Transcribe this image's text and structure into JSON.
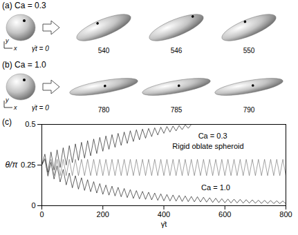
{
  "panels": [
    {
      "label": "(a) Ca = 0.3",
      "axis_labels": {
        "x": "x",
        "y": "y"
      },
      "initial_time": "γ̇t = 0",
      "times": [
        540,
        546,
        550
      ]
    },
    {
      "label": "(b) Ca = 1.0",
      "axis_labels": {
        "x": "x",
        "y": "y"
      },
      "initial_time": "γ̇t = 0",
      "times": [
        780,
        785,
        790
      ]
    }
  ],
  "chart_data": {
    "type": "line",
    "title": "(c)",
    "xlabel": "γ̇t",
    "ylabel": "θ/π",
    "xlim": [
      0,
      800
    ],
    "xticks": [
      0,
      200,
      400,
      600,
      800
    ],
    "ylim": [
      0,
      0.5
    ],
    "yticks": [
      0,
      0.25,
      0.5
    ],
    "x": [
      0,
      10,
      20,
      30,
      40,
      50,
      60,
      70,
      80,
      90,
      100,
      110,
      120,
      130,
      140,
      150,
      160,
      170,
      180,
      190,
      200,
      210,
      220,
      230,
      240,
      250,
      260,
      270,
      280,
      290,
      300,
      310,
      320,
      330,
      340,
      350,
      360,
      370,
      380,
      390,
      400,
      410,
      420,
      430,
      440,
      450,
      460,
      470,
      480,
      490,
      500,
      510,
      520,
      530,
      540,
      550,
      560,
      570,
      580,
      590,
      600,
      610,
      620,
      630,
      640,
      650,
      660,
      670,
      680,
      690,
      700,
      710,
      720,
      730,
      740,
      750,
      760,
      770,
      780,
      790,
      800
    ],
    "series": [
      {
        "color": "#000000",
        "values": [
          0.25,
          0.317,
          0.205,
          0.33,
          0.22,
          0.343,
          0.235,
          0.356,
          0.25,
          0.369,
          0.265,
          0.38,
          0.279,
          0.39,
          0.293,
          0.4,
          0.307,
          0.41,
          0.321,
          0.42,
          0.335,
          0.429,
          0.347,
          0.437,
          0.359,
          0.445,
          0.371,
          0.453,
          0.383,
          0.461,
          0.395,
          0.467,
          0.405,
          0.471,
          0.415,
          0.475,
          0.425,
          0.479,
          0.435,
          0.483,
          0.445,
          0.487,
          0.453,
          0.49,
          0.46,
          0.493,
          0.468,
          0.497,
          0.476,
          0.5,
          null,
          null,
          null,
          null,
          null,
          null,
          null,
          null,
          null,
          null,
          null,
          null,
          null,
          null,
          null,
          null,
          null,
          null,
          null,
          null,
          null,
          null,
          null,
          null,
          null,
          null,
          null,
          null,
          null,
          null,
          null
        ]
      },
      {
        "color": "#000000",
        "values": [
          0.25,
          0.289,
          0.182,
          0.267,
          0.164,
          0.245,
          0.146,
          0.223,
          0.128,
          0.201,
          0.11,
          0.184,
          0.102,
          0.172,
          0.094,
          0.16,
          0.086,
          0.148,
          0.078,
          0.136,
          0.07,
          0.127,
          0.065,
          0.12,
          0.06,
          0.113,
          0.055,
          0.106,
          0.05,
          0.099,
          0.045,
          0.093,
          0.042,
          0.088,
          0.039,
          0.083,
          0.036,
          0.078,
          0.033,
          0.073,
          0.03,
          0.069,
          0.029,
          0.066,
          0.028,
          0.063,
          0.026,
          0.06,
          0.025,
          0.057,
          0.024,
          0.055,
          0.023,
          0.052,
          0.022,
          0.049,
          0.02,
          0.046,
          0.019,
          0.043,
          0.018,
          0.041,
          0.017,
          0.04,
          0.017,
          0.039,
          0.016,
          0.037,
          0.016,
          0.036,
          0.015,
          0.034,
          0.014,
          0.033,
          0.014,
          0.032,
          0.013,
          0.03,
          0.013,
          0.029,
          0.012
        ]
      },
      {
        "color": "#666666",
        "values": [
          0.25,
          0.285,
          0.185,
          0.285,
          0.185,
          0.285,
          0.185,
          0.285,
          0.185,
          0.285,
          0.185,
          0.285,
          0.185,
          0.285,
          0.185,
          0.285,
          0.185,
          0.285,
          0.185,
          0.285,
          0.185,
          0.285,
          0.185,
          0.285,
          0.185,
          0.285,
          0.185,
          0.285,
          0.185,
          0.285,
          0.185,
          0.285,
          0.185,
          0.285,
          0.185,
          0.285,
          0.185,
          0.285,
          0.185,
          0.285,
          0.185,
          0.285,
          0.185,
          0.285,
          0.185,
          0.285,
          0.185,
          0.285,
          0.185,
          0.285,
          0.185,
          0.285,
          0.185,
          0.285,
          0.185,
          0.285,
          0.185,
          0.285,
          0.185,
          0.285,
          0.185,
          0.285,
          0.185,
          0.285,
          0.185,
          0.285,
          0.185,
          0.285,
          0.185,
          0.285,
          0.185,
          0.285,
          0.185,
          0.285,
          0.185,
          0.285,
          0.185,
          0.285,
          0.185,
          0.285,
          0.185
        ]
      }
    ],
    "annotations": [
      {
        "text": "Ca = 0.3",
        "x": 560,
        "y": 0.43
      },
      {
        "text": "Rigid oblate spheroid",
        "x": 545,
        "y": 0.365
      },
      {
        "text": "Ca = 1.0",
        "x": 570,
        "y": 0.11
      }
    ],
    "grid": false
  }
}
